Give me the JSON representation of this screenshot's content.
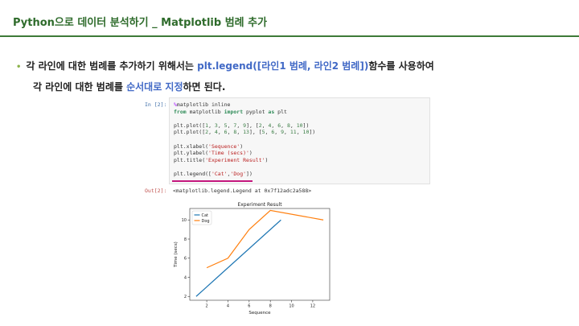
{
  "header": {
    "title": "Python으로 데이터 분석하기 _ Matplotlib 범례 추가"
  },
  "description": {
    "line1_prefix": "각 라인에 대한 범례를 추가하기 위해서는 ",
    "line1_highlight": "plt.legend([라인1 범례, 라인2 범례])",
    "line1_suffix": "함수를 사용하여",
    "line2_prefix": "각 라인에 대한 범례를 ",
    "line2_highlight": "순서대로 지정",
    "line2_suffix": "하면 된다."
  },
  "notebook": {
    "in_prompt": "In [2]:",
    "out_prompt": "Out[2]:",
    "output_text": "<matplotlib.legend.Legend at 0x7f12adc2a588>"
  },
  "colors": {
    "header_green": "#2e6b2b",
    "highlight_blue": "#4169c6",
    "cat_line": "#1f77b4",
    "dog_line": "#ff7f0e",
    "underline_magenta": "#c4177e"
  },
  "chart_data": {
    "type": "line",
    "title": "Experiment Result",
    "xlabel": "Sequence",
    "ylabel": "Time (secs)",
    "xlim": [
      0.4,
      13.6
    ],
    "ylim": [
      1.6,
      11.2
    ],
    "xticks": [
      2,
      4,
      6,
      8,
      10,
      12
    ],
    "yticks": [
      2,
      4,
      6,
      8,
      10
    ],
    "legend_position": "upper-left",
    "series": [
      {
        "name": "Cat",
        "color": "#1f77b4",
        "x": [
          1,
          3,
          5,
          7,
          9
        ],
        "y": [
          2,
          4,
          6,
          8,
          10
        ]
      },
      {
        "name": "Dog",
        "color": "#ff7f0e",
        "x": [
          2,
          4,
          6,
          8,
          13
        ],
        "y": [
          5,
          6,
          9,
          11,
          10
        ]
      }
    ]
  }
}
